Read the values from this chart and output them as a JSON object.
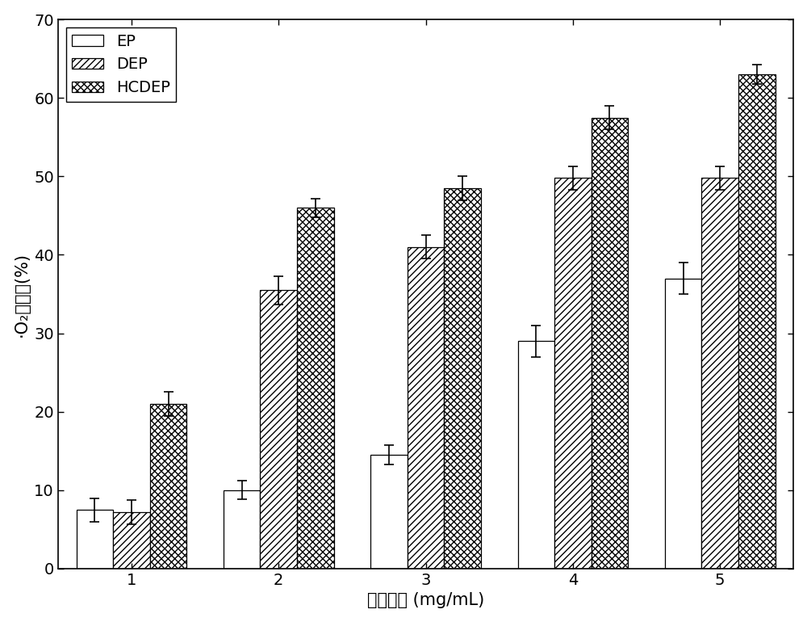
{
  "categories": [
    1,
    2,
    3,
    4,
    5
  ],
  "EP_values": [
    7.5,
    10.0,
    14.5,
    29.0,
    37.0
  ],
  "DEP_values": [
    7.2,
    35.5,
    41.0,
    49.8,
    49.8
  ],
  "HCDEP_values": [
    21.0,
    46.0,
    48.5,
    57.5,
    63.0
  ],
  "EP_errors": [
    1.5,
    1.2,
    1.2,
    2.0,
    2.0
  ],
  "DEP_errors": [
    1.5,
    1.8,
    1.5,
    1.5,
    1.5
  ],
  "HCDEP_errors": [
    1.5,
    1.2,
    1.5,
    1.5,
    1.2
  ],
  "xlabel": "样品浓度 (mg/mL)",
  "ylabel": "·O₂清除率(%)",
  "ylim": [
    0,
    70
  ],
  "yticks": [
    0,
    10,
    20,
    30,
    40,
    50,
    60,
    70
  ],
  "xticks": [
    1,
    2,
    3,
    4,
    5
  ],
  "bar_width": 0.25,
  "legend_labels": [
    "EP",
    "DEP",
    "HCDEP"
  ],
  "face_color": "#ffffff",
  "edge_color": "#000000",
  "hatch_EP": "",
  "hatch_DEP": "////",
  "hatch_HCDEP": "xxxx",
  "label_fontsize": 15,
  "tick_fontsize": 14,
  "legend_fontsize": 14
}
